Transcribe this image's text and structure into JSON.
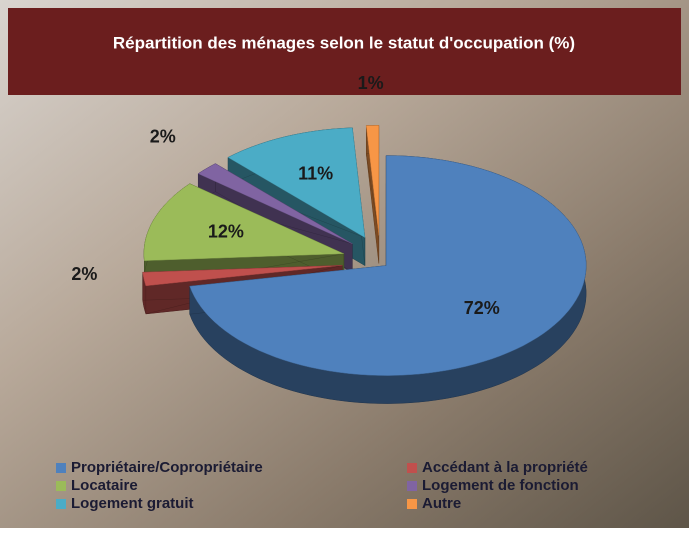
{
  "chart_data": {
    "type": "pie",
    "title": "Répartition des ménages selon le statut d'occupation (%)",
    "categories": [
      "Propriétaire/Copropriétaire",
      "Accédant à la propriété",
      "Locataire",
      "Logement de fonction",
      "Logement gratuit",
      "Autre"
    ],
    "values": [
      72,
      2,
      12,
      2,
      11,
      1
    ],
    "value_labels": [
      "72%",
      "2%",
      "12%",
      "2%",
      "11%",
      "1%"
    ],
    "colors": [
      "#4f81bd",
      "#c0504d",
      "#9bbb59",
      "#8064a2",
      "#4bacc6",
      "#f79646"
    ]
  }
}
